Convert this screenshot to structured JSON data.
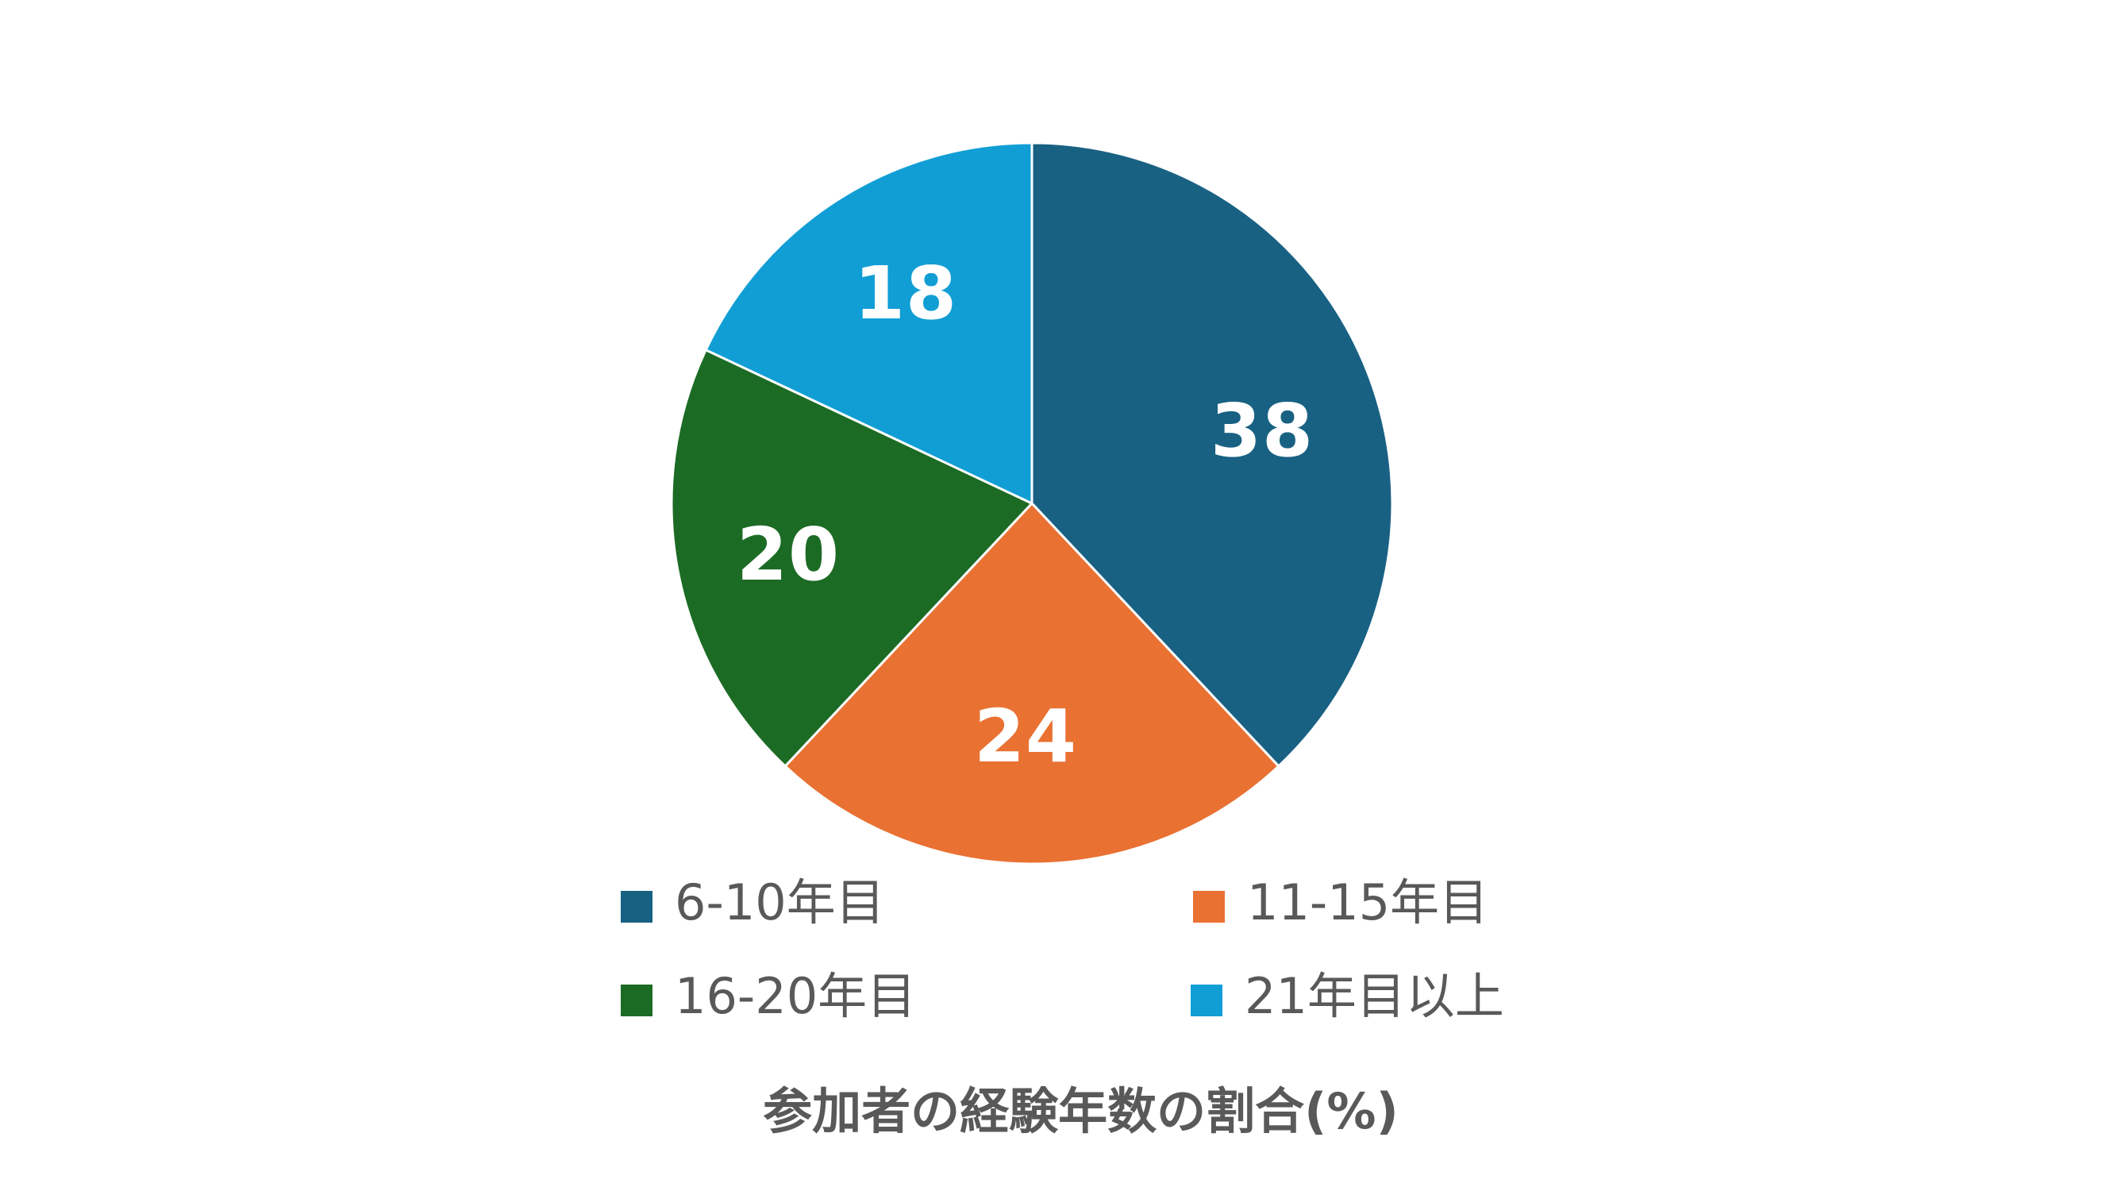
{
  "chart_data": {
    "type": "pie",
    "title": "参加者の経験年数の割合(%)",
    "categories": [
      "6-10年目",
      "11-15年目",
      "16-20年目",
      "21年目以上"
    ],
    "values": [
      38,
      24,
      20,
      18
    ],
    "colors": [
      "#196183",
      "#E97132",
      "#1C6B25",
      "#119ED5"
    ],
    "start_angle_deg": 0,
    "direction": "clockwise",
    "data_labels": [
      "38",
      "24",
      "20",
      "18"
    ],
    "legend_position": "bottom",
    "unit": "%"
  },
  "chart": {
    "title": "参加者の経験年数の割合(%)",
    "slice_border_color": "#ffffff",
    "legend": [
      {
        "label": "6-10年目",
        "color": "#196183"
      },
      {
        "label": "11-15年目",
        "color": "#E97132"
      },
      {
        "label": "16-20年目",
        "color": "#1C6B25"
      },
      {
        "label": "21年目以上",
        "color": "#119ED5"
      }
    ],
    "labels": [
      {
        "text": "38"
      },
      {
        "text": "24"
      },
      {
        "text": "20"
      },
      {
        "text": "18"
      }
    ]
  }
}
